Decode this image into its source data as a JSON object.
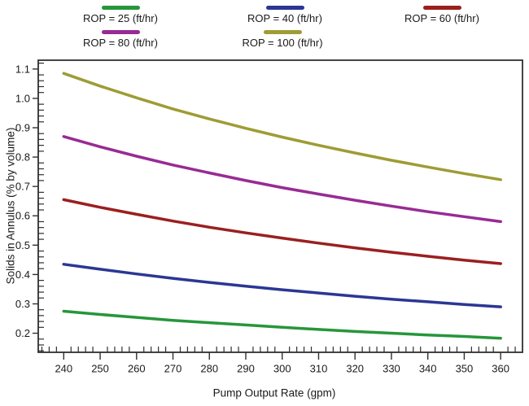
{
  "chart_data": {
    "type": "line",
    "title": "",
    "xlabel": "Pump Output Rate (gpm)",
    "ylabel": "Solids in Annulus (% by volume)",
    "x": [
      240,
      250,
      260,
      270,
      280,
      290,
      300,
      310,
      320,
      330,
      340,
      350,
      360
    ],
    "series": [
      {
        "name": "ROP = 25 (ft/hr)",
        "color": "#27963b",
        "values": [
          0.275,
          0.264,
          0.254,
          0.244,
          0.236,
          0.228,
          0.22,
          0.213,
          0.206,
          0.2,
          0.194,
          0.189,
          0.183
        ]
      },
      {
        "name": "ROP = 40 (ft/hr)",
        "color": "#2b3793",
        "values": [
          0.435,
          0.418,
          0.402,
          0.387,
          0.373,
          0.36,
          0.348,
          0.337,
          0.326,
          0.316,
          0.307,
          0.298,
          0.29
        ]
      },
      {
        "name": "ROP = 60 (ft/hr)",
        "color": "#9b1f1f",
        "values": [
          0.655,
          0.629,
          0.605,
          0.582,
          0.561,
          0.542,
          0.524,
          0.507,
          0.491,
          0.476,
          0.462,
          0.449,
          0.437
        ]
      },
      {
        "name": "ROP = 80 (ft/hr)",
        "color": "#982b94",
        "values": [
          0.87,
          0.835,
          0.803,
          0.773,
          0.746,
          0.72,
          0.696,
          0.674,
          0.653,
          0.633,
          0.614,
          0.597,
          0.58
        ]
      },
      {
        "name": "ROP = 100 (ft/hr)",
        "color": "#9e9c35",
        "values": [
          1.085,
          1.042,
          1.002,
          0.964,
          0.93,
          0.898,
          0.868,
          0.84,
          0.814,
          0.789,
          0.766,
          0.744,
          0.723
        ]
      }
    ],
    "xlim": [
      233,
      366
    ],
    "ylim": [
      0.135,
      1.13
    ],
    "x_major_ticks": [
      240,
      250,
      260,
      270,
      280,
      290,
      300,
      310,
      320,
      330,
      340,
      350,
      360
    ],
    "y_major_ticks": [
      0.2,
      0.3,
      0.4,
      0.5,
      0.6,
      0.7,
      0.8,
      0.9,
      1.0,
      1.1
    ],
    "x_minor_step": 2,
    "y_minor_step": 0.02,
    "grid": false,
    "legend_position": "top",
    "axis_color": "#2f2f2f",
    "text_color": "#1a1a1a"
  }
}
